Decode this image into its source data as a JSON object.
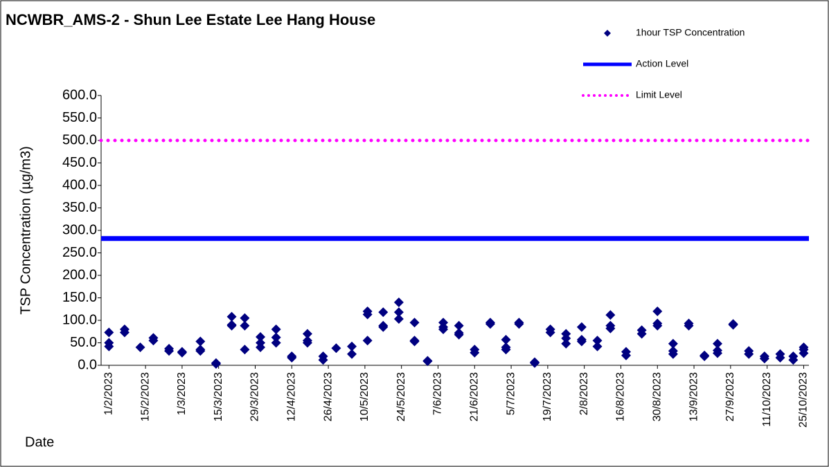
{
  "chart_data": {
    "type": "scatter",
    "title": "NCWBR_AMS-2 - Shun Lee Estate Lee Hang House",
    "y_label": "TSP Concentration (µg/m3)",
    "x_label": "Date",
    "series": [
      {
        "name": "1hour TSP Concentration",
        "color": "#000080",
        "x": [
          "1/2/2023",
          "1/2/2023",
          "1/2/2023",
          "7/2/2023",
          "7/2/2023",
          "13/2/2023",
          "18/2/2023",
          "18/2/2023",
          "24/2/2023",
          "24/2/2023",
          "1/3/2023",
          "1/3/2023",
          "8/3/2023",
          "8/3/2023",
          "8/3/2023",
          "14/3/2023",
          "14/3/2023",
          "20/3/2023",
          "20/3/2023",
          "20/3/2023",
          "25/3/2023",
          "25/3/2023",
          "25/3/2023",
          "31/3/2023",
          "31/3/2023",
          "31/3/2023",
          "6/4/2023",
          "6/4/2023",
          "6/4/2023",
          "12/4/2023",
          "12/4/2023",
          "18/4/2023",
          "18/4/2023",
          "18/4/2023",
          "24/4/2023",
          "24/4/2023",
          "29/4/2023",
          "5/5/2023",
          "5/5/2023",
          "11/5/2023",
          "11/5/2023",
          "11/5/2023",
          "17/5/2023",
          "17/5/2023",
          "17/5/2023",
          "23/5/2023",
          "23/5/2023",
          "23/5/2023",
          "29/5/2023",
          "29/5/2023",
          "29/5/2023",
          "3/6/2023",
          "3/6/2023",
          "9/6/2023",
          "9/6/2023",
          "9/6/2023",
          "15/6/2023",
          "15/6/2023",
          "15/6/2023",
          "21/6/2023",
          "21/6/2023",
          "27/6/2023",
          "27/6/2023",
          "3/7/2023",
          "3/7/2023",
          "3/7/2023",
          "8/7/2023",
          "8/7/2023",
          "14/7/2023",
          "14/7/2023",
          "20/7/2023",
          "20/7/2023",
          "26/7/2023",
          "26/7/2023",
          "26/7/2023",
          "1/8/2023",
          "1/8/2023",
          "1/8/2023",
          "7/8/2023",
          "7/8/2023",
          "12/8/2023",
          "12/8/2023",
          "12/8/2023",
          "18/8/2023",
          "18/8/2023",
          "24/8/2023",
          "24/8/2023",
          "30/8/2023",
          "30/8/2023",
          "30/8/2023",
          "5/9/2023",
          "5/9/2023",
          "5/9/2023",
          "11/9/2023",
          "11/9/2023",
          "17/9/2023",
          "17/9/2023",
          "22/9/2023",
          "22/9/2023",
          "22/9/2023",
          "28/9/2023",
          "28/9/2023",
          "4/10/2023",
          "4/10/2023",
          "10/10/2023",
          "10/10/2023",
          "16/10/2023",
          "16/10/2023",
          "21/10/2023",
          "21/10/2023",
          "25/10/2023",
          "25/10/2023",
          "25/10/2023"
        ],
        "values": [
          73,
          50,
          42,
          80,
          73,
          40,
          61,
          55,
          37,
          32,
          30,
          28,
          53,
          35,
          32,
          5,
          3,
          108,
          90,
          88,
          105,
          88,
          35,
          63,
          50,
          40,
          80,
          62,
          50,
          20,
          17,
          70,
          55,
          50,
          20,
          12,
          38,
          42,
          25,
          120,
          113,
          55,
          118,
          88,
          85,
          140,
          118,
          103,
          95,
          55,
          53,
          10,
          9,
          95,
          85,
          80,
          88,
          72,
          68,
          35,
          28,
          95,
          92,
          57,
          40,
          35,
          95,
          92,
          7,
          5,
          80,
          73,
          70,
          60,
          48,
          85,
          57,
          53,
          55,
          42,
          112,
          88,
          82,
          30,
          22,
          78,
          70,
          120,
          93,
          88,
          48,
          32,
          25,
          93,
          88,
          22,
          20,
          48,
          33,
          27,
          92,
          90,
          32,
          25,
          20,
          15,
          25,
          17,
          20,
          12,
          40,
          35,
          27
        ]
      }
    ],
    "levels": [
      {
        "name": "Action Level",
        "value": 282,
        "color": "#0000ff",
        "style": "solid"
      },
      {
        "name": "Limit Level",
        "value": 500,
        "color": "#ff00ff",
        "style": "dotted"
      }
    ],
    "xlim": [
      "29/1/2023",
      "27/10/2023"
    ],
    "xticks": [
      "1/2/2023",
      "15/2/2023",
      "1/3/2023",
      "15/3/2023",
      "29/3/2023",
      "12/4/2023",
      "26/4/2023",
      "10/5/2023",
      "24/5/2023",
      "7/6/2023",
      "21/6/2023",
      "5/7/2023",
      "19/7/2023",
      "2/8/2023",
      "16/8/2023",
      "30/8/2023",
      "13/9/2023",
      "27/9/2023",
      "11/10/2023",
      "25/10/2023"
    ],
    "ylim": [
      0,
      600
    ],
    "yticks": [
      {
        "value": 0,
        "label": "0.0"
      },
      {
        "value": 50,
        "label": "50.0"
      },
      {
        "value": 100,
        "label": "100.0"
      },
      {
        "value": 150,
        "label": "150.0"
      },
      {
        "value": 200,
        "label": "200.0"
      },
      {
        "value": 250,
        "label": "250.0"
      },
      {
        "value": 300,
        "label": "300.0"
      },
      {
        "value": 350,
        "label": "350.0"
      },
      {
        "value": 400,
        "label": "400.0"
      },
      {
        "value": 450,
        "label": "450.0"
      },
      {
        "value": 500,
        "label": "500.0"
      },
      {
        "value": 550,
        "label": "550.0"
      },
      {
        "value": 600,
        "label": "600.0"
      }
    ],
    "legend": "top-right",
    "grid": false
  }
}
